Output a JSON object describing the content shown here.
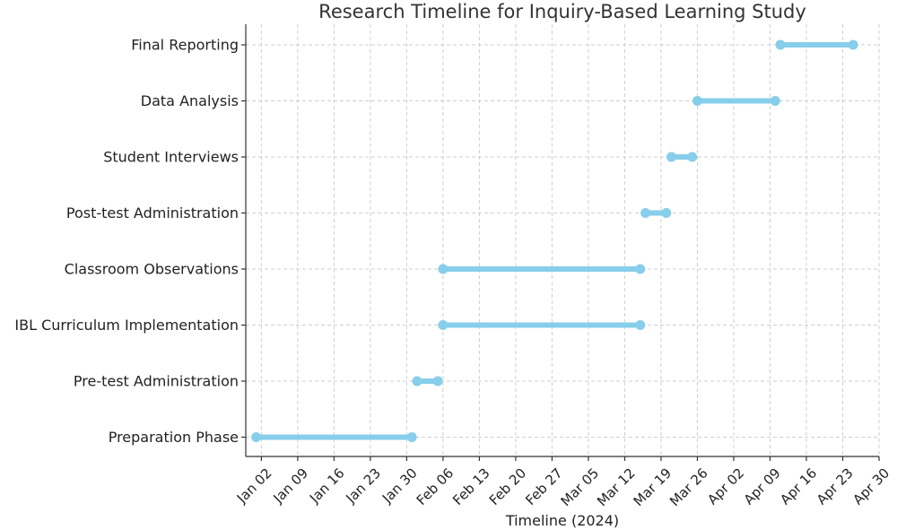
{
  "chart_data": {
    "type": "gantt",
    "title": "Research Timeline for Inquiry-Based Learning Study",
    "xlabel": "Timeline (2024)",
    "ylabel": "",
    "grid": true,
    "bar_color": "#87ceeb",
    "tasks": [
      {
        "name": "Preparation Phase",
        "start": "2024-01-01",
        "end": "2024-01-31"
      },
      {
        "name": "Pre-test Administration",
        "start": "2024-02-01",
        "end": "2024-02-05"
      },
      {
        "name": "IBL Curriculum Implementation",
        "start": "2024-02-06",
        "end": "2024-03-15"
      },
      {
        "name": "Classroom Observations",
        "start": "2024-02-06",
        "end": "2024-03-15"
      },
      {
        "name": "Post-test Administration",
        "start": "2024-03-16",
        "end": "2024-03-20"
      },
      {
        "name": "Student Interviews",
        "start": "2024-03-21",
        "end": "2024-03-25"
      },
      {
        "name": "Data Analysis",
        "start": "2024-03-26",
        "end": "2024-04-10"
      },
      {
        "name": "Final Reporting",
        "start": "2024-04-11",
        "end": "2024-04-25"
      }
    ],
    "x_ticks": [
      {
        "date": "2024-01-02",
        "label": "Jan 02"
      },
      {
        "date": "2024-01-09",
        "label": "Jan 09"
      },
      {
        "date": "2024-01-16",
        "label": "Jan 16"
      },
      {
        "date": "2024-01-23",
        "label": "Jan 23"
      },
      {
        "date": "2024-01-30",
        "label": "Jan 30"
      },
      {
        "date": "2024-02-06",
        "label": "Feb 06"
      },
      {
        "date": "2024-02-13",
        "label": "Feb 13"
      },
      {
        "date": "2024-02-20",
        "label": "Feb 20"
      },
      {
        "date": "2024-02-27",
        "label": "Feb 27"
      },
      {
        "date": "2024-03-05",
        "label": "Mar 05"
      },
      {
        "date": "2024-03-12",
        "label": "Mar 12"
      },
      {
        "date": "2024-03-19",
        "label": "Mar 19"
      },
      {
        "date": "2024-03-26",
        "label": "Mar 26"
      },
      {
        "date": "2024-04-02",
        "label": "Apr 02"
      },
      {
        "date": "2024-04-09",
        "label": "Apr 09"
      },
      {
        "date": "2024-04-16",
        "label": "Apr 16"
      },
      {
        "date": "2024-04-23",
        "label": "Apr 23"
      },
      {
        "date": "2024-04-30",
        "label": "Apr 30"
      }
    ],
    "xlim": [
      "2023-12-30",
      "2024-04-30"
    ]
  }
}
